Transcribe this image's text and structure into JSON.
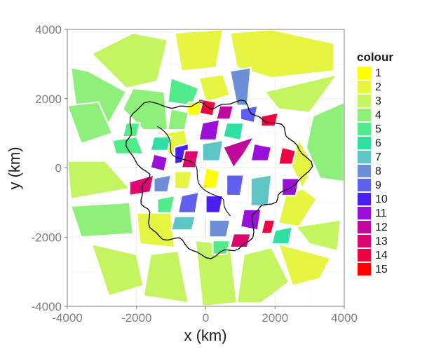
{
  "chart_data": {
    "type": "map",
    "xlabel": "x (km)",
    "ylabel": "y (km)",
    "xlim": [
      -4000,
      4000
    ],
    "ylim": [
      -4000,
      4000
    ],
    "x_ticks": [
      -4000,
      -2000,
      0,
      2000,
      4000
    ],
    "y_ticks": [
      -4000,
      -2000,
      0,
      2000,
      4000
    ],
    "grid": true,
    "legend": {
      "title": "colour",
      "placement": "right",
      "entries": [
        {
          "label": "1",
          "color": "#ffff00"
        },
        {
          "label": "2",
          "color": "#e6f542"
        },
        {
          "label": "3",
          "color": "#c4f560"
        },
        {
          "label": "4",
          "color": "#8ef07a"
        },
        {
          "label": "5",
          "color": "#52eb8a"
        },
        {
          "label": "6",
          "color": "#2fe0a0"
        },
        {
          "label": "7",
          "color": "#5fc4c4"
        },
        {
          "label": "8",
          "color": "#6d8fd8"
        },
        {
          "label": "9",
          "color": "#6060ee"
        },
        {
          "label": "10",
          "color": "#4a1ef0"
        },
        {
          "label": "11",
          "color": "#9a10d8"
        },
        {
          "label": "12",
          "color": "#c0089a"
        },
        {
          "label": "13",
          "color": "#de0670"
        },
        {
          "label": "14",
          "color": "#ee0440"
        },
        {
          "label": "15",
          "color": "#ff0000"
        }
      ]
    },
    "cells": [
      {
        "colour": 3,
        "points": [
          [
            -3300,
            3300
          ],
          [
            -2100,
            3900
          ],
          [
            -1100,
            3700
          ],
          [
            -1400,
            2500
          ],
          [
            -2300,
            2300
          ]
        ]
      },
      {
        "colour": 2,
        "points": [
          [
            -900,
            3900
          ],
          [
            500,
            4000
          ],
          [
            300,
            2900
          ],
          [
            -700,
            2800
          ]
        ]
      },
      {
        "colour": 2,
        "points": [
          [
            700,
            3900
          ],
          [
            1900,
            4000
          ],
          [
            3700,
            3600
          ],
          [
            3700,
            2800
          ],
          [
            1900,
            2600
          ],
          [
            900,
            2900
          ]
        ]
      },
      {
        "colour": 4,
        "points": [
          [
            -3900,
            2900
          ],
          [
            -3400,
            2800
          ],
          [
            -2300,
            2200
          ],
          [
            -2800,
            1300
          ],
          [
            -3700,
            1400
          ]
        ]
      },
      {
        "colour": 4,
        "points": [
          [
            -2100,
            2300
          ],
          [
            -1200,
            2200
          ],
          [
            -1100,
            1100
          ],
          [
            -1800,
            1100
          ],
          [
            -2400,
            1700
          ]
        ]
      },
      {
        "colour": 5,
        "points": [
          [
            -1000,
            2600
          ],
          [
            -200,
            2300
          ],
          [
            -400,
            1800
          ],
          [
            -1100,
            1900
          ]
        ]
      },
      {
        "colour": 2,
        "points": [
          [
            -200,
            2600
          ],
          [
            500,
            2700
          ],
          [
            700,
            2100
          ],
          [
            0,
            1900
          ]
        ]
      },
      {
        "colour": 8,
        "points": [
          [
            700,
            2800
          ],
          [
            1300,
            2900
          ],
          [
            1200,
            1800
          ],
          [
            900,
            1800
          ]
        ]
      },
      {
        "colour": 3,
        "points": [
          [
            1700,
            2200
          ],
          [
            3800,
            2700
          ],
          [
            3000,
            1600
          ],
          [
            2100,
            1700
          ]
        ]
      },
      {
        "colour": 4,
        "points": [
          [
            -4000,
            1800
          ],
          [
            -3100,
            1900
          ],
          [
            -2700,
            1000
          ],
          [
            -3600,
            700
          ]
        ]
      },
      {
        "colour": 5,
        "points": [
          [
            -2700,
            800
          ],
          [
            -2000,
            900
          ],
          [
            -1800,
            400
          ],
          [
            -2600,
            400
          ]
        ]
      },
      {
        "colour": 3,
        "points": [
          [
            -4000,
            200
          ],
          [
            -2900,
            200
          ],
          [
            -2200,
            -600
          ],
          [
            -3900,
            -900
          ]
        ]
      },
      {
        "colour": 4,
        "points": [
          [
            3100,
            1500
          ],
          [
            4000,
            1900
          ],
          [
            4000,
            -400
          ],
          [
            3300,
            -300
          ],
          [
            2900,
            600
          ]
        ]
      },
      {
        "colour": 2,
        "points": [
          [
            2700,
            800
          ],
          [
            3100,
            100
          ],
          [
            2800,
            -600
          ],
          [
            2400,
            200
          ]
        ]
      },
      {
        "colour": 2,
        "points": [
          [
            2300,
            -800
          ],
          [
            2800,
            -600
          ],
          [
            3200,
            -900
          ],
          [
            2700,
            -1700
          ],
          [
            2100,
            -1600
          ]
        ]
      },
      {
        "colour": 4,
        "points": [
          [
            -3900,
            -1100
          ],
          [
            -2200,
            -1000
          ],
          [
            -2100,
            -1900
          ],
          [
            -3600,
            -2000
          ]
        ]
      },
      {
        "colour": 2,
        "points": [
          [
            -2000,
            -1300
          ],
          [
            -1000,
            -1300
          ],
          [
            -900,
            -2300
          ],
          [
            -1900,
            -2200
          ]
        ]
      },
      {
        "colour": 3,
        "points": [
          [
            -3300,
            -2200
          ],
          [
            -2000,
            -2500
          ],
          [
            -1800,
            -3400
          ],
          [
            -2800,
            -3700
          ]
        ]
      },
      {
        "colour": 3,
        "points": [
          [
            -1600,
            -2500
          ],
          [
            -800,
            -2400
          ],
          [
            -500,
            -3900
          ],
          [
            -1800,
            -3700
          ]
        ]
      },
      {
        "colour": 3,
        "points": [
          [
            -300,
            -2100
          ],
          [
            700,
            -2200
          ],
          [
            900,
            -3900
          ],
          [
            -100,
            -4000
          ]
        ]
      },
      {
        "colour": 3,
        "points": [
          [
            1100,
            -2500
          ],
          [
            1900,
            -2300
          ],
          [
            2400,
            -3300
          ],
          [
            1600,
            -3900
          ],
          [
            900,
            -3900
          ]
        ]
      },
      {
        "colour": 2,
        "points": [
          [
            2100,
            -2200
          ],
          [
            3600,
            -2600
          ],
          [
            3300,
            -3200
          ],
          [
            2500,
            -3400
          ]
        ]
      },
      {
        "colour": 3,
        "points": [
          [
            2600,
            -1700
          ],
          [
            3900,
            -1500
          ],
          [
            3800,
            -2400
          ],
          [
            3000,
            -2200
          ]
        ]
      },
      {
        "colour": 2,
        "points": [
          [
            -1200,
            1000
          ],
          [
            -600,
            1100
          ],
          [
            -500,
            500
          ],
          [
            -1100,
            400
          ]
        ]
      },
      {
        "colour": 14,
        "points": [
          [
            -200,
            2000
          ],
          [
            300,
            1900
          ],
          [
            200,
            1500
          ],
          [
            -300,
            1600
          ]
        ]
      },
      {
        "colour": 1,
        "points": [
          [
            -500,
            1900
          ],
          [
            -100,
            1900
          ],
          [
            -200,
            1500
          ],
          [
            -600,
            1500
          ]
        ]
      },
      {
        "colour": 12,
        "points": [
          [
            400,
            1800
          ],
          [
            800,
            1800
          ],
          [
            700,
            1400
          ],
          [
            300,
            1400
          ]
        ]
      },
      {
        "colour": 9,
        "points": [
          [
            1000,
            1700
          ],
          [
            1500,
            1800
          ],
          [
            1400,
            1300
          ],
          [
            1000,
            1400
          ]
        ]
      },
      {
        "colour": 14,
        "points": [
          [
            1600,
            1500
          ],
          [
            2100,
            1600
          ],
          [
            2000,
            1200
          ],
          [
            1600,
            1200
          ]
        ]
      },
      {
        "colour": 6,
        "points": [
          [
            600,
            1300
          ],
          [
            1100,
            1300
          ],
          [
            1000,
            800
          ],
          [
            500,
            900
          ]
        ]
      },
      {
        "colour": 4,
        "points": [
          [
            -1000,
            1700
          ],
          [
            -500,
            1600
          ],
          [
            -600,
            1100
          ],
          [
            -1100,
            1100
          ]
        ]
      },
      {
        "colour": 11,
        "points": [
          [
            -100,
            1300
          ],
          [
            400,
            1400
          ],
          [
            300,
            800
          ],
          [
            -200,
            800
          ]
        ]
      },
      {
        "colour": 6,
        "points": [
          [
            -1500,
            900
          ],
          [
            -1000,
            900
          ],
          [
            -1100,
            500
          ],
          [
            -1600,
            500
          ]
        ]
      },
      {
        "colour": 10,
        "points": [
          [
            -900,
            600
          ],
          [
            -500,
            700
          ],
          [
            -500,
            200
          ],
          [
            -900,
            100
          ]
        ]
      },
      {
        "colour": 11,
        "points": [
          [
            -1500,
            400
          ],
          [
            -1100,
            300
          ],
          [
            -1200,
            -100
          ],
          [
            -1600,
            0
          ]
        ]
      },
      {
        "colour": 13,
        "points": [
          [
            -600,
            500
          ],
          [
            -200,
            500
          ],
          [
            -300,
            0
          ],
          [
            -700,
            0
          ]
        ]
      },
      {
        "colour": 7,
        "points": [
          [
            -100,
            700
          ],
          [
            500,
            800
          ],
          [
            400,
            200
          ],
          [
            -100,
            200
          ]
        ]
      },
      {
        "colour": 12,
        "points": [
          [
            500,
            600
          ],
          [
            1400,
            900
          ],
          [
            1100,
            400
          ],
          [
            800,
            0
          ]
        ]
      },
      {
        "colour": 11,
        "points": [
          [
            1400,
            700
          ],
          [
            1900,
            600
          ],
          [
            1800,
            200
          ],
          [
            1300,
            200
          ]
        ]
      },
      {
        "colour": 14,
        "points": [
          [
            2200,
            600
          ],
          [
            2600,
            500
          ],
          [
            2500,
            100
          ],
          [
            2100,
            100
          ]
        ]
      },
      {
        "colour": 13,
        "points": [
          [
            -2200,
            -400
          ],
          [
            -1500,
            -200
          ],
          [
            -1600,
            -700
          ],
          [
            -2200,
            -800
          ]
        ]
      },
      {
        "colour": 8,
        "points": [
          [
            -1500,
            -300
          ],
          [
            -1000,
            -200
          ],
          [
            -1100,
            -700
          ],
          [
            -1500,
            -700
          ]
        ]
      },
      {
        "colour": 2,
        "points": [
          [
            -900,
            -100
          ],
          [
            -400,
            -100
          ],
          [
            -500,
            -600
          ],
          [
            -900,
            -600
          ]
        ]
      },
      {
        "colour": 1,
        "points": [
          [
            0,
            0
          ],
          [
            400,
            -100
          ],
          [
            300,
            -600
          ],
          [
            -100,
            -600
          ]
        ]
      },
      {
        "colour": 9,
        "points": [
          [
            600,
            -200
          ],
          [
            1100,
            -200
          ],
          [
            1000,
            -800
          ],
          [
            600,
            -800
          ]
        ]
      },
      {
        "colour": 7,
        "points": [
          [
            1300,
            -300
          ],
          [
            1900,
            -200
          ],
          [
            1800,
            -1100
          ],
          [
            1300,
            -1100
          ]
        ]
      },
      {
        "colour": 11,
        "points": [
          [
            2200,
            -300
          ],
          [
            2700,
            -300
          ],
          [
            2600,
            -800
          ],
          [
            2200,
            -800
          ]
        ]
      },
      {
        "colour": 5,
        "points": [
          [
            -1400,
            -900
          ],
          [
            -900,
            -800
          ],
          [
            -1000,
            -1300
          ],
          [
            -1400,
            -1300
          ]
        ]
      },
      {
        "colour": 9,
        "points": [
          [
            -700,
            -800
          ],
          [
            -200,
            -700
          ],
          [
            -300,
            -1300
          ],
          [
            -800,
            -1300
          ]
        ]
      },
      {
        "colour": 10,
        "points": [
          [
            0,
            -800
          ],
          [
            500,
            -800
          ],
          [
            400,
            -1300
          ],
          [
            0,
            -1300
          ]
        ]
      },
      {
        "colour": 11,
        "points": [
          [
            1100,
            -1200
          ],
          [
            1600,
            -1200
          ],
          [
            1500,
            -1800
          ],
          [
            1000,
            -1700
          ]
        ]
      },
      {
        "colour": 14,
        "points": [
          [
            1700,
            -1500
          ],
          [
            2000,
            -1500
          ],
          [
            1900,
            -1900
          ],
          [
            1600,
            -1900
          ]
        ]
      },
      {
        "colour": 6,
        "points": [
          [
            2000,
            -1800
          ],
          [
            2500,
            -1700
          ],
          [
            2400,
            -2200
          ],
          [
            1900,
            -2200
          ]
        ]
      },
      {
        "colour": 7,
        "points": [
          [
            -900,
            -1400
          ],
          [
            -300,
            -1400
          ],
          [
            -400,
            -1800
          ],
          [
            -1000,
            -1800
          ]
        ]
      },
      {
        "colour": 8,
        "points": [
          [
            100,
            -1500
          ],
          [
            700,
            -1500
          ],
          [
            600,
            -2000
          ],
          [
            100,
            -2000
          ]
        ]
      },
      {
        "colour": 13,
        "points": [
          [
            800,
            -1900
          ],
          [
            1300,
            -1900
          ],
          [
            1200,
            -2300
          ],
          [
            700,
            -2300
          ]
        ]
      },
      {
        "colour": 5,
        "points": [
          [
            200,
            -2100
          ],
          [
            700,
            -2100
          ],
          [
            600,
            -2500
          ],
          [
            200,
            -2500
          ]
        ]
      },
      {
        "colour": 5,
        "points": [
          [
            -2300,
            1300
          ],
          [
            -1900,
            1300
          ],
          [
            -2000,
            900
          ],
          [
            -2400,
            900
          ]
        ]
      }
    ]
  }
}
